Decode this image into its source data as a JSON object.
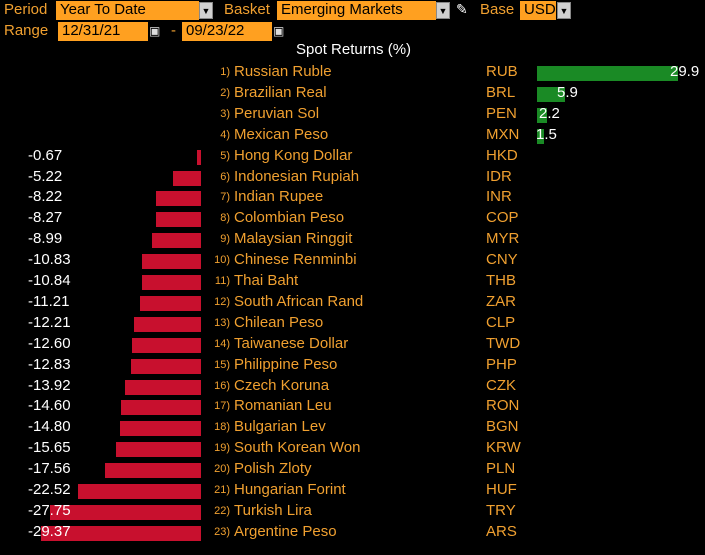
{
  "controls": {
    "period_label": "Period",
    "period_value": "Year To Date",
    "basket_label": "Basket",
    "basket_value": "Emerging Markets",
    "base_label": "Base",
    "base_value": "USD",
    "range_label": "Range",
    "range_start": "12/31/21",
    "range_dash": "-",
    "range_end": "09/23/22"
  },
  "chart_data": {
    "type": "bar",
    "title": "Spot Returns (%)",
    "rows": [
      {
        "rank": "1)",
        "name": "Russian Ruble",
        "code": "RUB",
        "value": 29.9,
        "label": "29.9"
      },
      {
        "rank": "2)",
        "name": "Brazilian Real",
        "code": "BRL",
        "value": 5.9,
        "label": "5.9"
      },
      {
        "rank": "3)",
        "name": "Peruvian Sol",
        "code": "PEN",
        "value": 2.2,
        "label": "2.2"
      },
      {
        "rank": "4)",
        "name": "Mexican Peso",
        "code": "MXN",
        "value": 1.5,
        "label": "1.5"
      },
      {
        "rank": "5)",
        "name": "Hong Kong Dollar",
        "code": "HKD",
        "value": -0.67,
        "label": "-0.67"
      },
      {
        "rank": "6)",
        "name": "Indonesian Rupiah",
        "code": "IDR",
        "value": -5.22,
        "label": "-5.22"
      },
      {
        "rank": "7)",
        "name": "Indian Rupee",
        "code": "INR",
        "value": -8.22,
        "label": "-8.22"
      },
      {
        "rank": "8)",
        "name": "Colombian Peso",
        "code": "COP",
        "value": -8.27,
        "label": "-8.27"
      },
      {
        "rank": "9)",
        "name": "Malaysian Ringgit",
        "code": "MYR",
        "value": -8.99,
        "label": "-8.99"
      },
      {
        "rank": "10)",
        "name": "Chinese Renminbi",
        "code": "CNY",
        "value": -10.83,
        "label": "-10.83"
      },
      {
        "rank": "11)",
        "name": "Thai Baht",
        "code": "THB",
        "value": -10.84,
        "label": "-10.84"
      },
      {
        "rank": "12)",
        "name": "South African Rand",
        "code": "ZAR",
        "value": -11.21,
        "label": "-11.21"
      },
      {
        "rank": "13)",
        "name": "Chilean Peso",
        "code": "CLP",
        "value": -12.21,
        "label": "-12.21"
      },
      {
        "rank": "14)",
        "name": "Taiwanese Dollar",
        "code": "TWD",
        "value": -12.6,
        "label": "-12.60"
      },
      {
        "rank": "15)",
        "name": "Philippine Peso",
        "code": "PHP",
        "value": -12.83,
        "label": "-12.83"
      },
      {
        "rank": "16)",
        "name": "Czech Koruna",
        "code": "CZK",
        "value": -13.92,
        "label": "-13.92"
      },
      {
        "rank": "17)",
        "name": "Romanian Leu",
        "code": "RON",
        "value": -14.6,
        "label": "-14.60"
      },
      {
        "rank": "18)",
        "name": "Bulgarian Lev",
        "code": "BGN",
        "value": -14.8,
        "label": "-14.80"
      },
      {
        "rank": "19)",
        "name": "South Korean Won",
        "code": "KRW",
        "value": -15.65,
        "label": "-15.65"
      },
      {
        "rank": "20)",
        "name": "Polish Zloty",
        "code": "PLN",
        "value": -17.56,
        "label": "-17.56"
      },
      {
        "rank": "21)",
        "name": "Hungarian Forint",
        "code": "HUF",
        "value": -22.52,
        "label": "-22.52"
      },
      {
        "rank": "22)",
        "name": "Turkish Lira",
        "code": "TRY",
        "value": -27.75,
        "label": "-27.75"
      },
      {
        "rank": "23)",
        "name": "Argentine Peso",
        "code": "ARS",
        "value": -29.37,
        "label": "-29.37"
      }
    ]
  }
}
